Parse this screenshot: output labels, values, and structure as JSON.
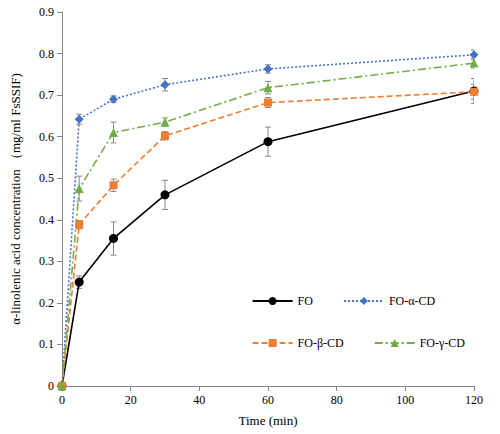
{
  "chart_data": {
    "type": "line",
    "x_label": "Time (min)",
    "y_label": "α-linolenic acid concentration （mg/ml FsSSIF)",
    "xlim": [
      0,
      120
    ],
    "xticks": [
      0,
      20,
      40,
      60,
      80,
      100,
      120
    ],
    "ylim": [
      0,
      0.9
    ],
    "yticks": [
      0,
      0.1,
      0.2,
      0.3,
      0.4,
      0.5,
      0.6,
      0.7,
      0.8,
      0.9
    ],
    "grid": false,
    "legend": "lower right",
    "series": [
      {
        "name": "FO",
        "color": "#000000",
        "marker": "circle",
        "line_style": "solid",
        "x": [
          0,
          5,
          15,
          30,
          60,
          120
        ],
        "values": [
          0,
          0.25,
          0.355,
          0.46,
          0.588,
          0.71
        ],
        "errors": [
          0,
          0.015,
          0.04,
          0.035,
          0.035,
          0.03
        ]
      },
      {
        "name": "FO-α-CD",
        "color": "#4472c4",
        "marker": "diamond",
        "line_style": "dotted",
        "x": [
          0,
          5,
          15,
          30,
          60,
          120
        ],
        "values": [
          0,
          0.642,
          0.69,
          0.725,
          0.763,
          0.797
        ],
        "errors": [
          0,
          0.012,
          0.008,
          0.015,
          0.01,
          0.012
        ]
      },
      {
        "name": "FO-β-CD",
        "color": "#ed7d31",
        "marker": "square",
        "line_style": "dashed",
        "x": [
          0,
          5,
          15,
          30,
          60,
          120
        ],
        "values": [
          0,
          0.388,
          0.483,
          0.602,
          0.682,
          0.708
        ],
        "errors": [
          0,
          0.01,
          0.015,
          0.01,
          0.012,
          0.018
        ]
      },
      {
        "name": "FO-γ-CD",
        "color": "#70ad47",
        "marker": "triangle",
        "line_style": "dashdot",
        "x": [
          0,
          5,
          15,
          30,
          60,
          120
        ],
        "values": [
          0,
          0.475,
          0.61,
          0.635,
          0.718,
          0.777
        ],
        "errors": [
          0,
          0.03,
          0.025,
          0.01,
          0.015,
          0.012
        ]
      }
    ]
  }
}
